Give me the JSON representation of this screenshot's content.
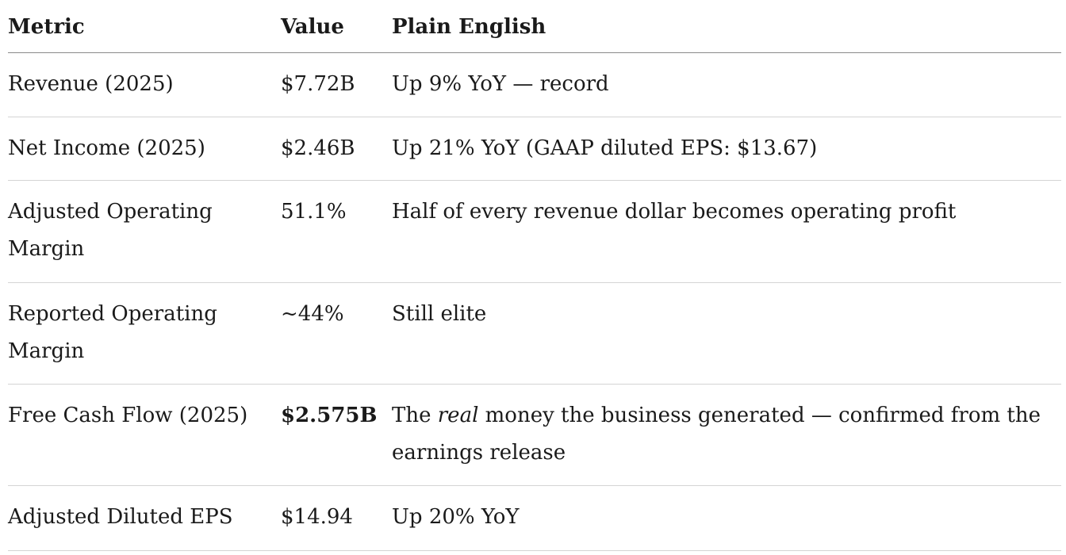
{
  "table": {
    "headers": {
      "metric": "Metric",
      "value": "Value",
      "plain": "Plain English"
    },
    "rows": [
      {
        "metric": "Revenue (2025)",
        "value": "$7.72B",
        "plain": "Up 9% YoY — record"
      },
      {
        "metric": "Net Income (2025)",
        "value": "$2.46B",
        "plain": "Up 21% YoY (GAAP diluted EPS: $13.67)"
      },
      {
        "metric": "Adjusted Operating Margin",
        "value": "51.1%",
        "plain": "Half of every revenue dollar becomes operating profit"
      },
      {
        "metric": "Reported Operating Margin",
        "value": "~44%",
        "plain": "Still elite"
      },
      {
        "metric": "Free Cash Flow (2025)",
        "value": "$2.575B",
        "plain_prefix": "The ",
        "plain_emphasis": "real",
        "plain_suffix": " money the business generated — confirmed from the earnings release"
      },
      {
        "metric": "Adjusted Diluted EPS",
        "value": "$14.94",
        "plain": "Up 20% YoY"
      }
    ]
  }
}
